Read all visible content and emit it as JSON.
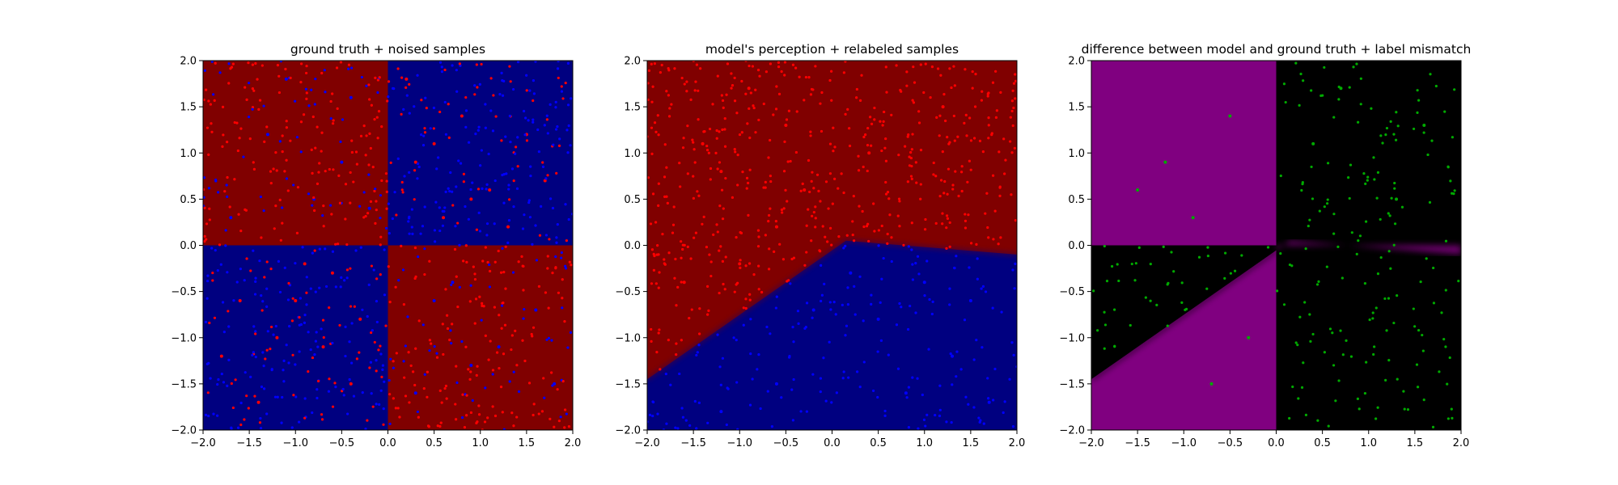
{
  "chart_data": [
    {
      "type": "scatter",
      "title": "ground truth + noised samples",
      "xlabel": "",
      "ylabel": "",
      "xlim": [
        -2.0,
        2.0
      ],
      "ylim": [
        -2.0,
        2.0
      ],
      "xticks": [
        "−2.0",
        "−1.5",
        "−1.0",
        "−0.5",
        "0.0",
        "0.5",
        "1.0",
        "1.5",
        "2.0"
      ],
      "yticks": [
        "−2.0",
        "−1.5",
        "−1.0",
        "−0.5",
        "0.0",
        "0.5",
        "1.0",
        "1.5",
        "2.0"
      ],
      "background": "XOR ground truth: red where x·y < 0, blue where x·y > 0",
      "background_colors": {
        "red": "#800000",
        "blue": "#000080"
      },
      "series": [
        {
          "color": "#ff0000",
          "marker_size": 2,
          "points": [
            [
              0.6,
              0.3
            ],
            [
              0.8,
              1.4
            ],
            [
              1.1,
              0.6
            ],
            [
              0.3,
              0.9
            ],
            [
              1.5,
              1.2
            ],
            [
              0.2,
              1.8
            ],
            [
              1.3,
              0.2
            ],
            [
              0.5,
              1.1
            ],
            [
              1.7,
              0.7
            ],
            [
              0.9,
              0.5
            ],
            [
              -0.6,
              -0.3
            ],
            [
              -1.2,
              -1.0
            ],
            [
              -0.4,
              -1.5
            ],
            [
              -1.6,
              -0.6
            ],
            [
              -0.9,
              -0.2
            ],
            [
              -0.3,
              -0.8
            ],
            [
              -1.4,
              -1.7
            ],
            [
              -0.7,
              -1.1
            ],
            [
              -1.8,
              -1.2
            ],
            [
              -1.0,
              -0.6
            ]
          ]
        },
        {
          "color": "#0000ff",
          "marker_size": 2,
          "points": [
            [
              -0.8,
              0.5
            ],
            [
              -1.3,
              1.2
            ],
            [
              -0.4,
              1.6
            ],
            [
              -1.7,
              0.3
            ],
            [
              -0.5,
              0.9
            ],
            [
              -1.1,
              1.8
            ],
            [
              -0.2,
              0.4
            ],
            [
              0.7,
              -0.4
            ],
            [
              1.2,
              -1.1
            ],
            [
              0.3,
              -1.6
            ],
            [
              1.6,
              -0.7
            ],
            [
              0.9,
              -1.3
            ],
            [
              0.5,
              -0.6
            ],
            [
              1.8,
              -1.5
            ]
          ]
        }
      ]
    },
    {
      "type": "scatter",
      "title": "model's perception + relabeled samples",
      "xlabel": "",
      "ylabel": "",
      "xlim": [
        -2.0,
        2.0
      ],
      "ylim": [
        -2.0,
        2.0
      ],
      "xticks": [
        "−2.0",
        "−1.5",
        "−1.0",
        "−0.5",
        "0.0",
        "0.5",
        "1.0",
        "1.5",
        "2.0"
      ],
      "yticks": [
        "−2.0",
        "−1.5",
        "−1.0",
        "−0.5",
        "0.0",
        "0.5",
        "1.0",
        "1.5",
        "2.0"
      ],
      "background": "model decision regions: red above boundary through (-2,-1.45), (0.15,0.05), (2,-0.1); blue below",
      "boundary": [
        [
          -2.0,
          -1.45
        ],
        [
          0.15,
          0.05
        ],
        [
          2.0,
          -0.1
        ]
      ],
      "background_colors": {
        "red": "#800000",
        "blue": "#000080"
      },
      "series": [
        {
          "color": "#ff0000",
          "marker_size": 2,
          "points": [
            [
              -1.2,
              0.8
            ],
            [
              -0.5,
              1.3
            ],
            [
              -1.6,
              -0.4
            ],
            [
              -0.3,
              0.6
            ],
            [
              -0.9,
              1.7
            ],
            [
              -1.0,
              -0.2
            ],
            [
              -0.6,
              0.2
            ],
            [
              0.4,
              1.0
            ],
            [
              1.2,
              1.5
            ],
            [
              -1.4,
              1.1
            ]
          ]
        },
        {
          "color": "#0000ff",
          "marker_size": 2,
          "points": [
            [
              0.5,
              -0.8
            ],
            [
              1.3,
              -1.2
            ],
            [
              -0.6,
              -1.5
            ],
            [
              1.0,
              -0.4
            ],
            [
              1.7,
              -1.7
            ],
            [
              -0.2,
              -0.7
            ],
            [
              0.8,
              -1.6
            ],
            [
              -1.2,
              -1.8
            ],
            [
              0.2,
              -0.3
            ],
            [
              1.5,
              -0.6
            ]
          ]
        }
      ]
    },
    {
      "type": "scatter",
      "title": "difference between model and ground truth + label mismatch",
      "xlabel": "",
      "ylabel": "",
      "xlim": [
        -2.0,
        2.0
      ],
      "ylim": [
        -2.0,
        2.0
      ],
      "xticks": [
        "−2.0",
        "−1.5",
        "−1.0",
        "−0.5",
        "0.0",
        "0.5",
        "1.0",
        "1.5",
        "2.0"
      ],
      "yticks": [
        "−2.0",
        "−1.5",
        "−1.0",
        "−0.5",
        "0.0",
        "0.5",
        "1.0",
        "1.5",
        "2.0"
      ],
      "background": "purple where model disagrees with ground truth, black where they agree",
      "background_colors": {
        "mismatch": "#800080",
        "match": "#000000"
      },
      "series": [
        {
          "color": "#00aa00",
          "marker_size": 2,
          "points": [
            [
              -1.2,
              0.9
            ],
            [
              -0.5,
              1.4
            ],
            [
              0.4,
              1.1
            ],
            [
              1.3,
              0.5
            ],
            [
              -0.9,
              0.3
            ],
            [
              0.7,
              1.7
            ],
            [
              -0.3,
              -1.0
            ],
            [
              -0.7,
              -1.5
            ],
            [
              1.6,
              1.3
            ],
            [
              -1.5,
              0.6
            ]
          ]
        }
      ]
    }
  ]
}
